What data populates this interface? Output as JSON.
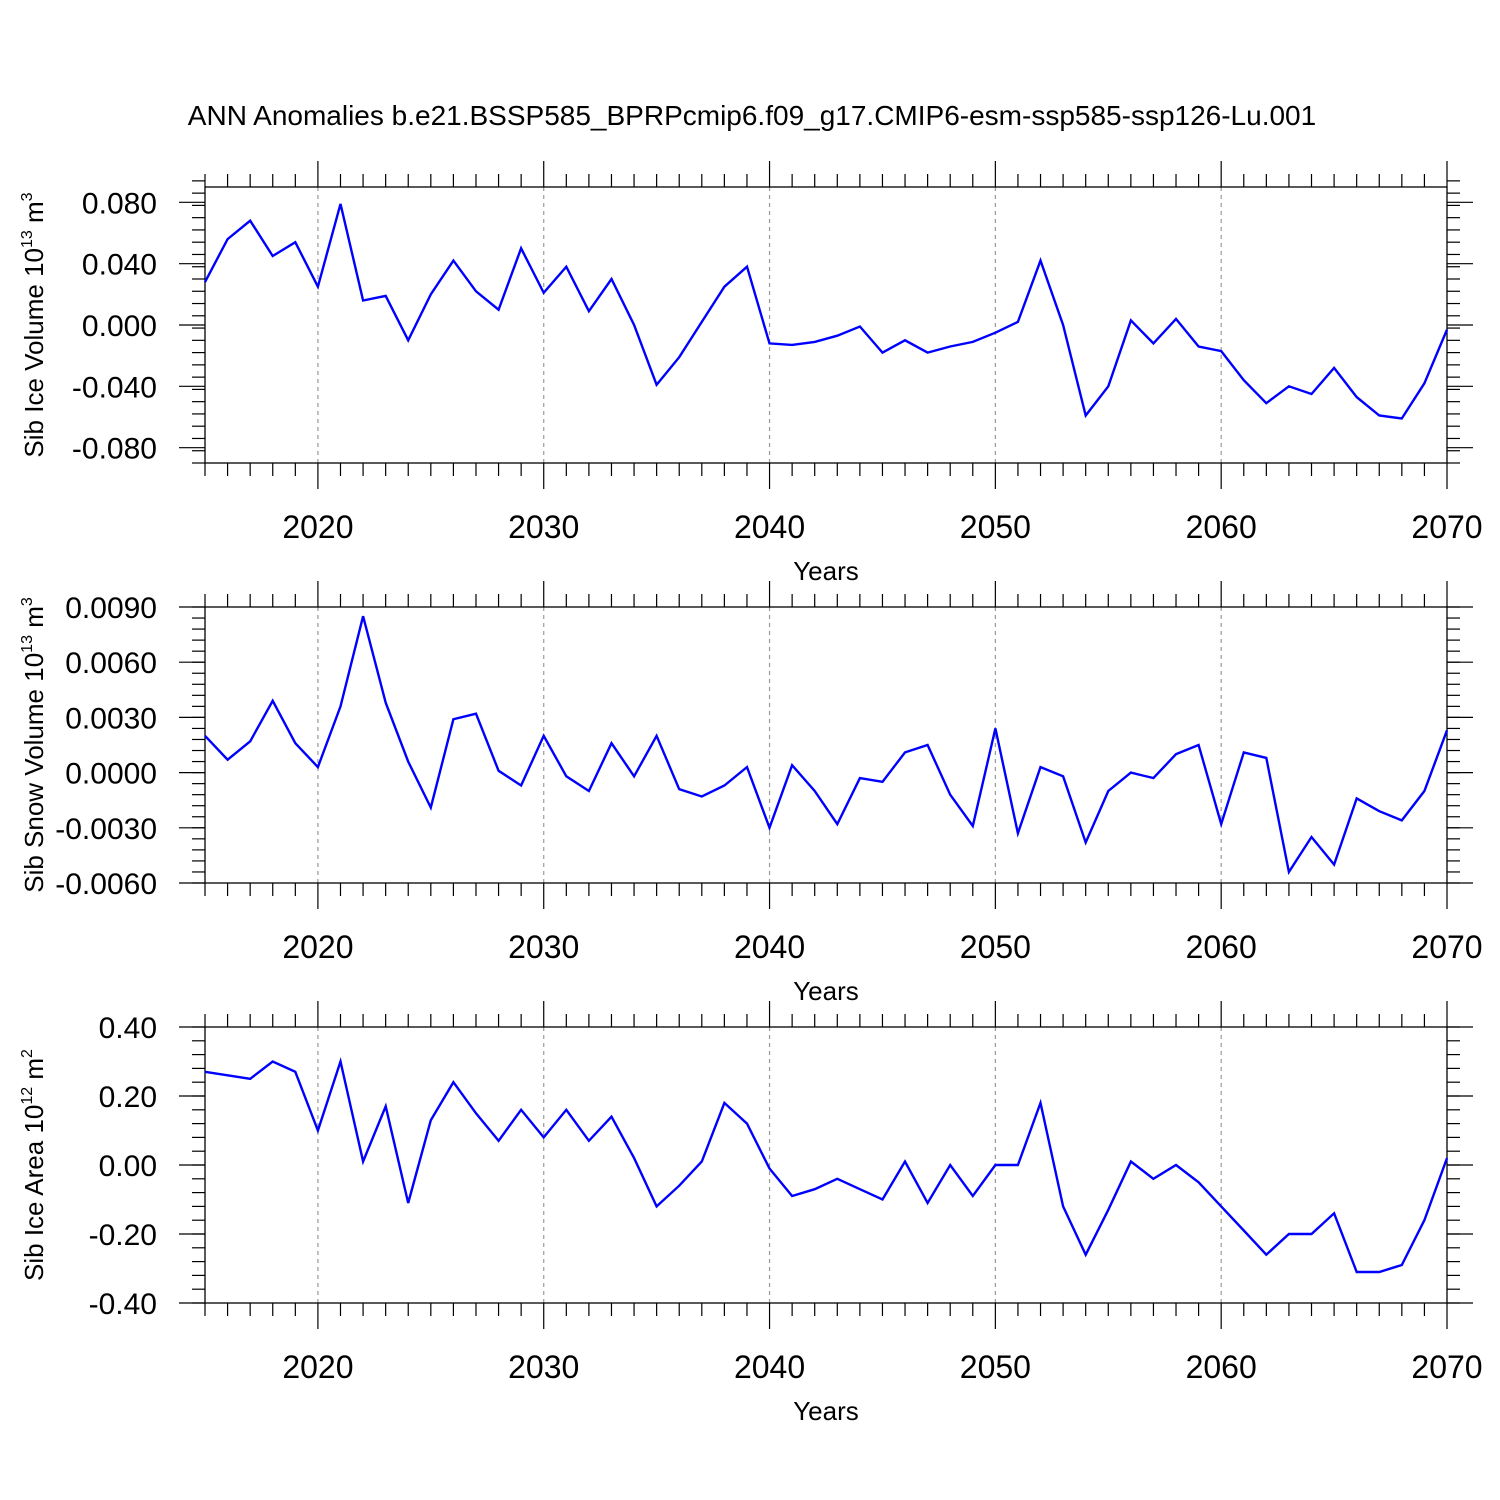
{
  "title": "ANN Anomalies b.e21.BSSP585_BPRPcmip6.f09_g17.CMIP6-esm-ssp585-ssp126-Lu.001",
  "line_color": "#0000ff",
  "chart_data": [
    {
      "type": "line",
      "xlabel": "Years",
      "ylabel": "Sib Ice Volume 10",
      "ylabel_sup": "13",
      "ylabel_unit": " m",
      "ylabel_unit_sup": "3",
      "xlim": [
        2015,
        2070
      ],
      "ylim": [
        -0.09,
        0.09
      ],
      "yticks": [
        -0.08,
        -0.04,
        0.0,
        0.04,
        0.08
      ],
      "ytick_labels": [
        "-0.080",
        "-0.040",
        "0.000",
        "0.040",
        "0.080"
      ],
      "yminor_step": 0.008,
      "xticks": [
        2020,
        2030,
        2040,
        2050,
        2060,
        2070
      ],
      "xtick_labels": [
        "2020",
        "2030",
        "2040",
        "2050",
        "2060",
        "2070"
      ],
      "grid": "vertical dashed at major x ticks",
      "x": [
        2015,
        2016,
        2017,
        2018,
        2019,
        2020,
        2021,
        2022,
        2023,
        2024,
        2025,
        2026,
        2027,
        2028,
        2029,
        2030,
        2031,
        2032,
        2033,
        2034,
        2035,
        2036,
        2037,
        2038,
        2039,
        2040,
        2041,
        2042,
        2043,
        2044,
        2045,
        2046,
        2047,
        2048,
        2049,
        2050,
        2051,
        2052,
        2053,
        2054,
        2055,
        2056,
        2057,
        2058,
        2059,
        2060,
        2061,
        2062,
        2063,
        2064,
        2065,
        2066,
        2067,
        2068,
        2069,
        2070
      ],
      "series": [
        {
          "values": [
            0.028,
            0.056,
            0.068,
            0.045,
            0.054,
            0.025,
            0.079,
            0.016,
            0.019,
            -0.01,
            0.02,
            0.042,
            0.022,
            0.01,
            0.05,
            0.021,
            0.038,
            0.009,
            0.03,
            0.0,
            -0.039,
            -0.021,
            0.002,
            0.025,
            0.038,
            -0.012,
            -0.013,
            -0.011,
            -0.007,
            -0.001,
            -0.018,
            -0.01,
            -0.018,
            -0.014,
            -0.011,
            -0.005,
            0.002,
            0.042,
            0.0,
            -0.059,
            -0.04,
            0.003,
            -0.012,
            0.004,
            -0.014,
            -0.017,
            -0.036,
            -0.051,
            -0.04,
            -0.045,
            -0.028,
            -0.047,
            -0.059,
            -0.061,
            -0.038,
            -0.003
          ]
        }
      ]
    },
    {
      "type": "line",
      "xlabel": "Years",
      "ylabel": "Sib Snow Volume 10",
      "ylabel_sup": "13",
      "ylabel_unit": " m",
      "ylabel_unit_sup": "3",
      "xlim": [
        2015,
        2070
      ],
      "ylim": [
        -0.006,
        0.009
      ],
      "yticks": [
        -0.006,
        -0.003,
        0.0,
        0.003,
        0.006,
        0.009
      ],
      "ytick_labels": [
        "-0.0060",
        "-0.0030",
        "0.0000",
        "0.0030",
        "0.0060",
        "0.0090"
      ],
      "yminor_step": 0.0006,
      "xticks": [
        2020,
        2030,
        2040,
        2050,
        2060,
        2070
      ],
      "xtick_labels": [
        "2020",
        "2030",
        "2040",
        "2050",
        "2060",
        "2070"
      ],
      "grid": "vertical dashed at major x ticks",
      "x": [
        2015,
        2016,
        2017,
        2018,
        2019,
        2020,
        2021,
        2022,
        2023,
        2024,
        2025,
        2026,
        2027,
        2028,
        2029,
        2030,
        2031,
        2032,
        2033,
        2034,
        2035,
        2036,
        2037,
        2038,
        2039,
        2040,
        2041,
        2042,
        2043,
        2044,
        2045,
        2046,
        2047,
        2048,
        2049,
        2050,
        2051,
        2052,
        2053,
        2054,
        2055,
        2056,
        2057,
        2058,
        2059,
        2060,
        2061,
        2062,
        2063,
        2064,
        2065,
        2066,
        2067,
        2068,
        2069,
        2070
      ],
      "series": [
        {
          "values": [
            0.002,
            0.0007,
            0.0017,
            0.0039,
            0.0016,
            0.0003,
            0.0036,
            0.0085,
            0.0038,
            0.0006,
            -0.0019,
            0.0029,
            0.0032,
            0.0001,
            -0.0007,
            0.002,
            -0.0002,
            -0.001,
            0.0016,
            -0.0002,
            0.002,
            -0.0009,
            -0.0013,
            -0.0007,
            0.0003,
            -0.003,
            0.0004,
            -0.001,
            -0.0028,
            -0.0003,
            -0.0005,
            0.0011,
            0.0015,
            -0.0012,
            -0.0029,
            0.0024,
            -0.0033,
            0.0003,
            -0.0002,
            -0.0038,
            -0.001,
            0.0,
            -0.0003,
            0.001,
            0.0015,
            -0.0028,
            0.0011,
            0.0008,
            -0.0054,
            -0.0035,
            -0.005,
            -0.0014,
            -0.0021,
            -0.0026,
            -0.001,
            0.0023
          ]
        }
      ]
    },
    {
      "type": "line",
      "xlabel": "Years",
      "ylabel": "Sib Ice Area 10",
      "ylabel_sup": "12",
      "ylabel_unit": " m",
      "ylabel_unit_sup": "2",
      "xlim": [
        2015,
        2070
      ],
      "ylim": [
        -0.4,
        0.4
      ],
      "yticks": [
        -0.4,
        -0.2,
        0.0,
        0.2,
        0.4
      ],
      "ytick_labels": [
        "-0.40",
        "-0.20",
        "0.00",
        "0.20",
        "0.40"
      ],
      "yminor_step": 0.04,
      "xticks": [
        2020,
        2030,
        2040,
        2050,
        2060,
        2070
      ],
      "xtick_labels": [
        "2020",
        "2030",
        "2040",
        "2050",
        "2060",
        "2070"
      ],
      "grid": "vertical dashed at major x ticks",
      "x": [
        2015,
        2016,
        2017,
        2018,
        2019,
        2020,
        2021,
        2022,
        2023,
        2024,
        2025,
        2026,
        2027,
        2028,
        2029,
        2030,
        2031,
        2032,
        2033,
        2034,
        2035,
        2036,
        2037,
        2038,
        2039,
        2040,
        2041,
        2042,
        2043,
        2044,
        2045,
        2046,
        2047,
        2048,
        2049,
        2050,
        2051,
        2052,
        2053,
        2054,
        2055,
        2056,
        2057,
        2058,
        2059,
        2060,
        2061,
        2062,
        2063,
        2064,
        2065,
        2066,
        2067,
        2068,
        2069,
        2070
      ],
      "series": [
        {
          "values": [
            0.27,
            0.26,
            0.25,
            0.3,
            0.27,
            0.1,
            0.3,
            0.01,
            0.17,
            -0.11,
            0.13,
            0.24,
            0.15,
            0.07,
            0.16,
            0.08,
            0.16,
            0.07,
            0.14,
            0.02,
            -0.12,
            -0.06,
            0.01,
            0.18,
            0.12,
            -0.01,
            -0.09,
            -0.07,
            -0.04,
            -0.07,
            -0.1,
            0.01,
            -0.11,
            0.0,
            -0.09,
            0.0,
            0.0,
            0.18,
            -0.12,
            -0.26,
            -0.13,
            0.01,
            -0.04,
            0.0,
            -0.05,
            -0.12,
            -0.19,
            -0.26,
            -0.2,
            -0.2,
            -0.14,
            -0.31,
            -0.31,
            -0.29,
            -0.16,
            0.02
          ]
        }
      ]
    }
  ]
}
